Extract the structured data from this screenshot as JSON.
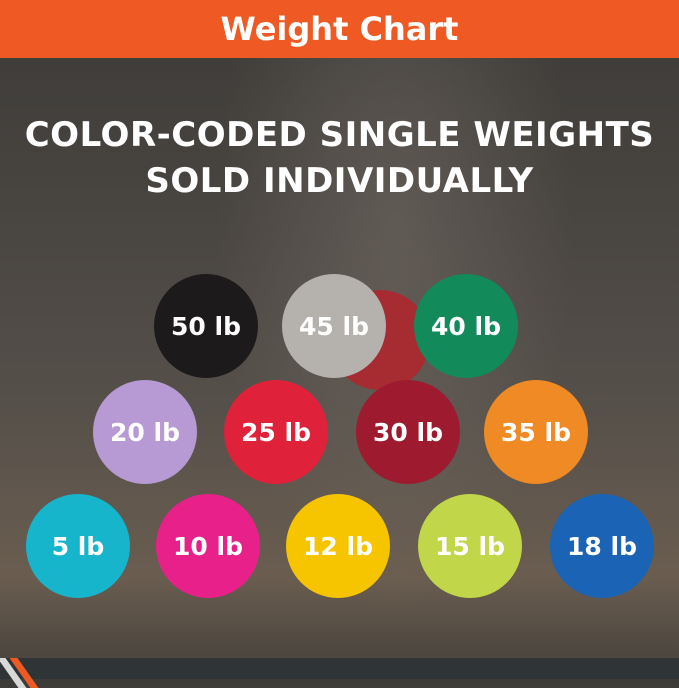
{
  "header": {
    "title": "Weight Chart",
    "color": "#ef5a24"
  },
  "headline": {
    "line1": "COLOR-CODED SINGLE WEIGHTS",
    "line2": "SOLD INDIVIDUALLY"
  },
  "weights": [
    {
      "label": "50 lb",
      "color": "#1c1a1a"
    },
    {
      "label": "45 lb",
      "color": "#b5b1ad"
    },
    {
      "label": "40 lb",
      "color": "#138a5a"
    },
    {
      "label": "20 lb",
      "color": "#b79ad4"
    },
    {
      "label": "25 lb",
      "color": "#e0213a"
    },
    {
      "label": "30 lb",
      "color": "#9e1a2e"
    },
    {
      "label": "35 lb",
      "color": "#f08a24"
    },
    {
      "label": "5 lb",
      "color": "#17b5cc"
    },
    {
      "label": "10 lb",
      "color": "#e8208a"
    },
    {
      "label": "12 lb",
      "color": "#f7c400"
    },
    {
      "label": "15 lb",
      "color": "#c2d64a"
    },
    {
      "label": "18 lb",
      "color": "#1a63b5"
    }
  ]
}
